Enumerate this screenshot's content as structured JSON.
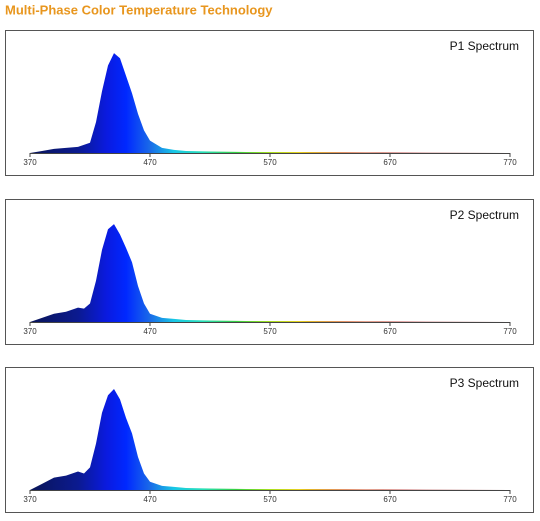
{
  "title": "Multi-Phase Color Temperature Technology",
  "chart_data": [
    {
      "type": "area",
      "title": "P1 Spectrum",
      "x": [
        370,
        380,
        390,
        400,
        410,
        420,
        425,
        430,
        435,
        440,
        445,
        450,
        455,
        460,
        465,
        470,
        480,
        490,
        500,
        520,
        550,
        600,
        650,
        700,
        770
      ],
      "values": [
        0,
        2,
        4,
        5,
        6,
        10,
        30,
        60,
        85,
        97,
        92,
        75,
        58,
        38,
        22,
        12,
        5,
        3,
        2,
        1.5,
        1,
        1,
        0.5,
        0.3,
        0
      ],
      "xlim": [
        370,
        770
      ],
      "ylim": [
        0,
        100
      ],
      "xticks": [
        370,
        470,
        570,
        670,
        770
      ]
    },
    {
      "type": "area",
      "title": "P2 Spectrum",
      "x": [
        370,
        380,
        390,
        400,
        410,
        415,
        420,
        425,
        430,
        435,
        440,
        445,
        450,
        455,
        460,
        465,
        470,
        480,
        490,
        500,
        520,
        550,
        600,
        650,
        700,
        770
      ],
      "values": [
        0,
        4,
        8,
        10,
        14,
        13,
        18,
        40,
        70,
        90,
        95,
        85,
        72,
        58,
        35,
        18,
        8,
        4,
        3,
        2,
        1.5,
        1,
        1,
        0.5,
        0.3,
        0
      ],
      "xlim": [
        370,
        770
      ],
      "ylim": [
        0,
        100
      ],
      "xticks": [
        370,
        470,
        570,
        670,
        770
      ]
    },
    {
      "type": "area",
      "title": "P3 Spectrum",
      "x": [
        370,
        380,
        390,
        400,
        410,
        415,
        420,
        425,
        430,
        435,
        440,
        445,
        450,
        455,
        460,
        465,
        470,
        480,
        490,
        500,
        520,
        550,
        600,
        650,
        700,
        770
      ],
      "values": [
        0,
        6,
        12,
        14,
        18,
        16,
        22,
        45,
        75,
        92,
        98,
        88,
        70,
        55,
        32,
        16,
        8,
        4,
        3,
        2,
        1.5,
        1,
        1,
        0.5,
        0.3,
        0
      ],
      "xlim": [
        370,
        770
      ],
      "ylim": [
        0,
        100
      ],
      "xticks": [
        370,
        470,
        570,
        670,
        770
      ]
    }
  ]
}
